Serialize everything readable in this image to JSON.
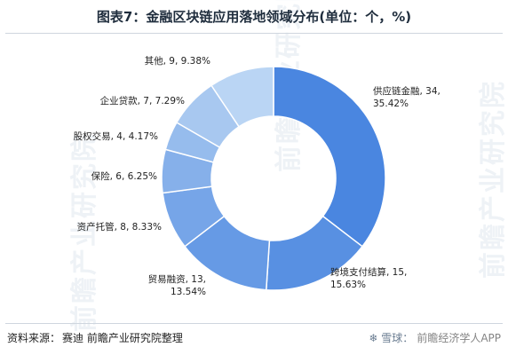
{
  "title": "图表7：金融区块链应用落地领域分布(单位：个，%)",
  "source": {
    "label": "资料来源：",
    "text": "赛迪 前瞻产业研究院整理"
  },
  "watermark": {
    "logo": "❄ 雪球：",
    "text": "前瞻经济学人APP"
  },
  "background_watermarks": [
    "前瞻产业研究院",
    "前瞻产业研究院",
    "前瞻产业研究院"
  ],
  "colors": {
    "slices": [
      "#4a86e0",
      "#5890e2",
      "#669ae5",
      "#76a5e8",
      "#86b0ea",
      "#96bced",
      "#a8c8f0",
      "#bad5f4"
    ],
    "stroke": "#ffffff",
    "label": "#222222"
  },
  "chart_data": {
    "type": "pie",
    "donut": true,
    "title": "",
    "categories": [
      "供应链金融",
      "跨境支付结算",
      "贸易融资",
      "资产托管",
      "保险",
      "股权交易",
      "企业贷款",
      "其他"
    ],
    "values": [
      34,
      15,
      13,
      8,
      6,
      4,
      7,
      9
    ],
    "percents": [
      "35.42%",
      "15.63%",
      "13.54%",
      "8.33%",
      "6.25%",
      "4.17%",
      "7.29%",
      "9.38%"
    ],
    "labels": [
      [
        "供应链金融, 34,",
        "35.42%"
      ],
      [
        "跨境支付结算, 15,",
        "15.63%"
      ],
      [
        "贸易融资, 13,",
        "13.54%"
      ],
      [
        "资产托管, 8, 8.33%"
      ],
      [
        "保险, 6, 6.25%"
      ],
      [
        "股权交易, 4, 4.17%"
      ],
      [
        "企业贷款, 7, 7.29%"
      ],
      [
        "其他, 9, 9.38%"
      ]
    ]
  }
}
